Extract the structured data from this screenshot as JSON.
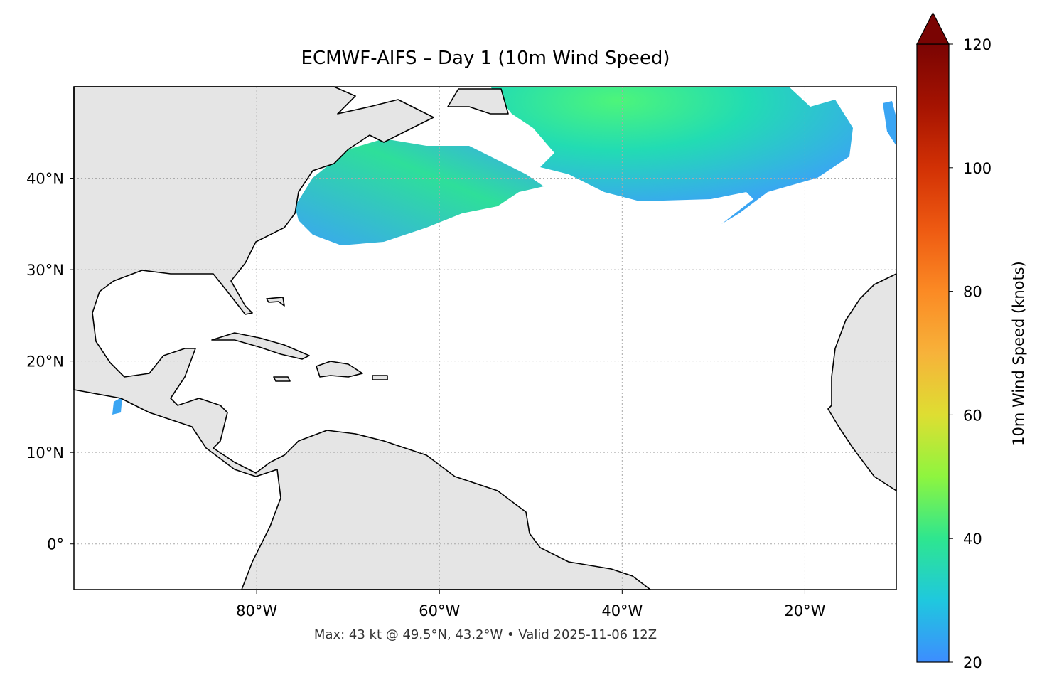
{
  "map": {
    "title": "ECMWF-AIFS – Day 1 (10m Wind Speed)",
    "footer": "Max: 43 kt @ 49.5°N, 43.2°W • Valid 2025-11-06 12Z",
    "xlim": [
      -100,
      -10
    ],
    "ylim": [
      -5,
      50
    ],
    "xticks": [
      {
        "value": -80,
        "label": "80°W"
      },
      {
        "value": -60,
        "label": "60°W"
      },
      {
        "value": -40,
        "label": "40°W"
      },
      {
        "value": -20,
        "label": "20°W"
      }
    ],
    "yticks": [
      {
        "value": 0,
        "label": "0°"
      },
      {
        "value": 10,
        "label": "10°N"
      },
      {
        "value": 20,
        "label": "20°N"
      },
      {
        "value": 30,
        "label": "30°N"
      },
      {
        "value": 40,
        "label": "40°N"
      }
    ],
    "grid": true,
    "colorbar": {
      "label": "10m Wind Speed (knots)",
      "lim": [
        20,
        120
      ],
      "ticks": [
        20,
        40,
        60,
        80,
        100,
        120
      ],
      "colormap": [
        "#3d8dff",
        "#1fc8de",
        "#2ee68f",
        "#8ef53f",
        "#dede32",
        "#f7b23a",
        "#fb8a24",
        "#ee5a12",
        "#d23105",
        "#a51301",
        "#7a0403"
      ]
    }
  }
}
